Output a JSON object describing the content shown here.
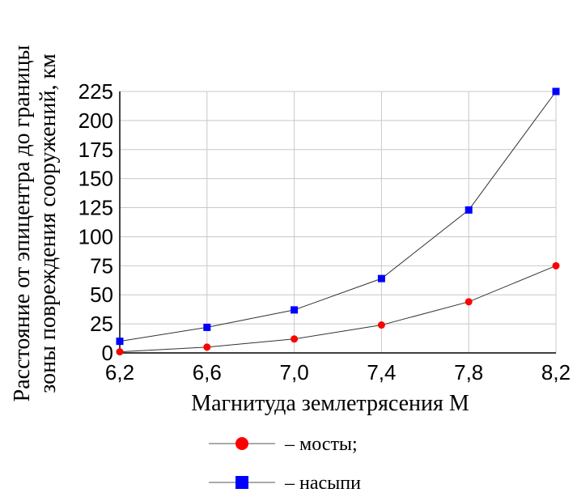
{
  "chart_data": {
    "type": "line",
    "x": [
      6.2,
      6.6,
      7.0,
      7.4,
      7.8,
      8.2
    ],
    "x_tick_labels": [
      "6,2",
      "6,6",
      "7,0",
      "7,4",
      "7,8",
      "8,2"
    ],
    "y_ticks": [
      0,
      25,
      50,
      75,
      100,
      125,
      150,
      175,
      200,
      225
    ],
    "xlim": [
      6.2,
      8.2
    ],
    "ylim": [
      0,
      225
    ],
    "grid": true,
    "xlabel": "Магнитуда землетрясения М",
    "ylabel_line1": "Расстояние от эпицентра до границы",
    "ylabel_line2": "зоны повреждения сооружений, км",
    "series": [
      {
        "name": "– мосты;",
        "marker": "circle",
        "color": "#ff0000",
        "values": [
          1,
          5,
          12,
          24,
          44,
          75
        ]
      },
      {
        "name": "– насыпи",
        "marker": "square",
        "color": "#0000ff",
        "values": [
          10,
          22,
          37,
          64,
          123,
          225
        ]
      }
    ],
    "legend_position": "bottom-center"
  }
}
